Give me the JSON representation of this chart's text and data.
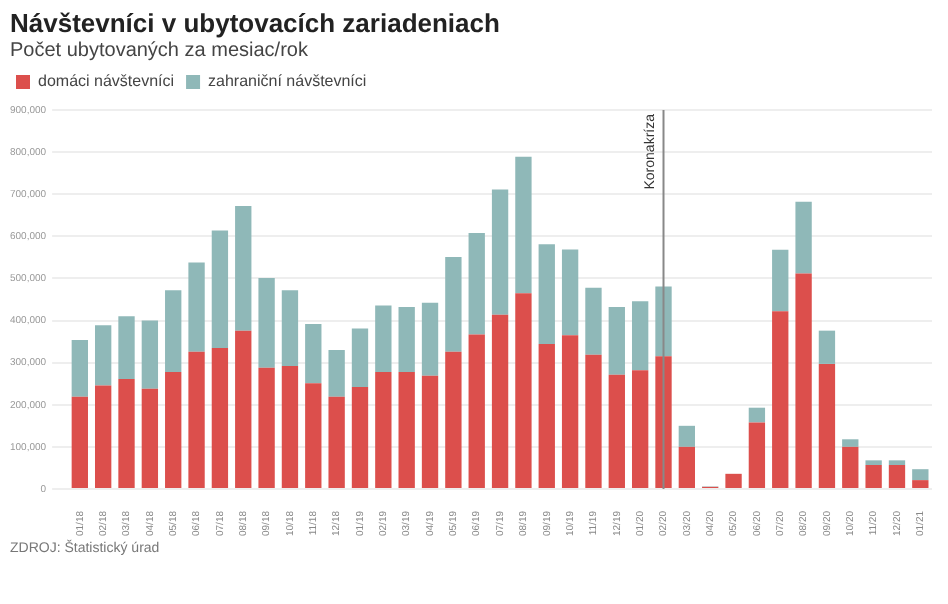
{
  "chart_data": {
    "type": "bar",
    "title": "Návštevníci v ubytovacích zariadeniach",
    "subtitle": "Počet ubytovaných za mesiac/rok",
    "categories": [
      "01/18",
      "02/18",
      "03/18",
      "04/18",
      "05/18",
      "06/18",
      "07/18",
      "08/18",
      "09/18",
      "10/18",
      "11/18",
      "12/18",
      "01/19",
      "02/19",
      "03/19",
      "04/19",
      "05/19",
      "06/19",
      "07/19",
      "08/19",
      "09/19",
      "10/19",
      "11/19",
      "12/19",
      "01/20",
      "02/20",
      "03/20",
      "04/20",
      "05/20",
      "06/20",
      "07/20",
      "08/20",
      "09/20",
      "10/20",
      "11/20",
      "12/20",
      "01/21"
    ],
    "series": [
      {
        "name": "domáci návštevníci",
        "color": "#dc4f4c",
        "values": [
          219000,
          246000,
          261000,
          238000,
          278000,
          326000,
          335000,
          376000,
          288000,
          292000,
          251000,
          219000,
          242000,
          278000,
          278000,
          269000,
          326000,
          367000,
          414000,
          465000,
          344000,
          365000,
          319000,
          271000,
          282000,
          315000,
          100000,
          5000,
          36000,
          158000,
          422000,
          512000,
          297000,
          100000,
          57000,
          57000,
          21000
        ]
      },
      {
        "name": "zahraniční návštevníci",
        "color": "#8fb8b8",
        "values": [
          135000,
          143000,
          149000,
          162000,
          194000,
          212000,
          279000,
          296000,
          213000,
          180000,
          141000,
          111000,
          139000,
          158000,
          154000,
          173000,
          225000,
          241000,
          297000,
          324000,
          237000,
          204000,
          159000,
          161000,
          164000,
          166000,
          50000,
          1000,
          0,
          35000,
          146000,
          170000,
          79000,
          18000,
          11000,
          11000,
          26000
        ]
      }
    ],
    "stacked": true,
    "ylim": [
      0,
      900000
    ],
    "yticks": [
      {
        "value": 0,
        "label": "0"
      },
      {
        "value": 100000,
        "label": "100,000"
      },
      {
        "value": 200000,
        "label": "200,000"
      },
      {
        "value": 300000,
        "label": "300,000"
      },
      {
        "value": 400000,
        "label": "400,000"
      },
      {
        "value": 500000,
        "label": "500,000"
      },
      {
        "value": 600000,
        "label": "600,000"
      },
      {
        "value": 700000,
        "label": "700,000"
      },
      {
        "value": 800000,
        "label": "800,000"
      },
      {
        "value": 900000,
        "label": "900,000"
      }
    ],
    "grid": "y",
    "legend": "top left",
    "ref_lines": [
      {
        "axis": "x",
        "value": "02/20",
        "label": "Koronakríza",
        "color": "#888888"
      }
    ],
    "annotations": [
      "ZDROJ: Štatistický úrad"
    ]
  }
}
